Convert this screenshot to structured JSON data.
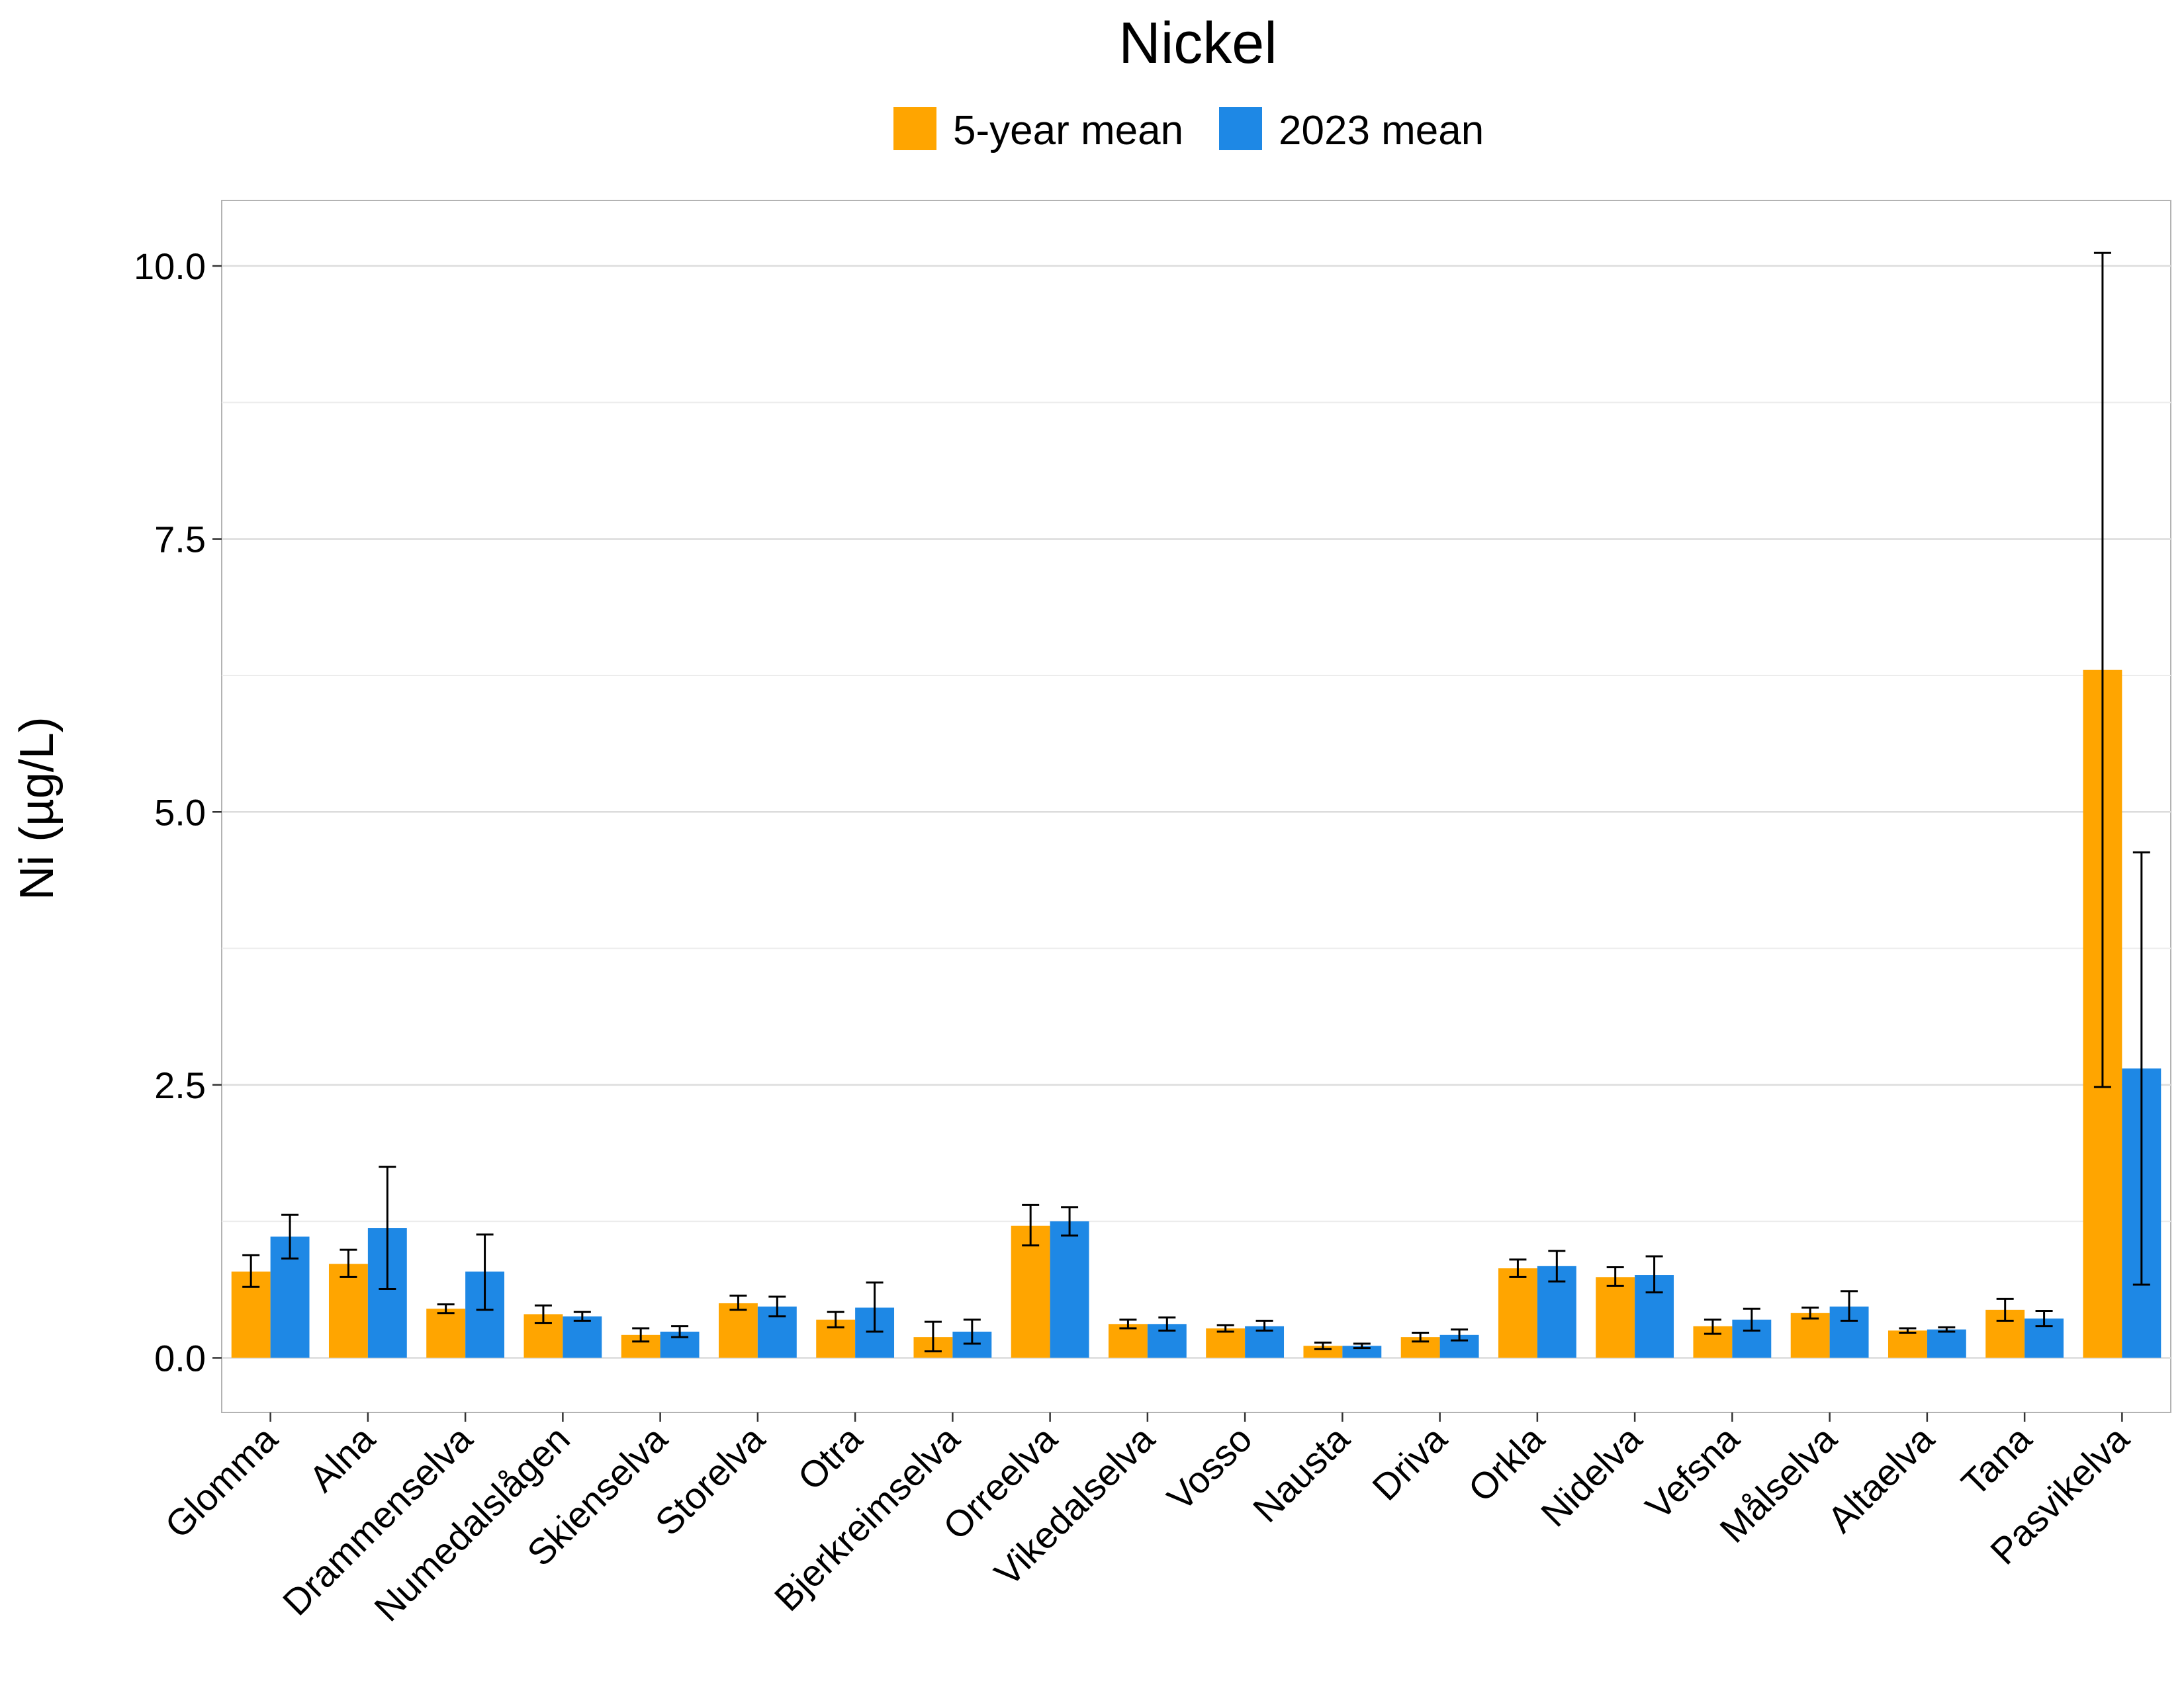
{
  "chart_data": {
    "type": "bar",
    "title": "Nickel",
    "xlabel": "",
    "ylabel": "Ni (µg/L)",
    "ylim": [
      -0.5,
      10.6
    ],
    "yticks": [
      "0.0",
      "2.5",
      "5.0",
      "7.5",
      "10.0"
    ],
    "ytick_values": [
      0,
      2.5,
      5,
      7.5,
      10
    ],
    "minor_gridlines": [
      1.25,
      3.75,
      6.25,
      8.75
    ],
    "grid": true,
    "legend_position": "top",
    "categories": [
      "Glomma",
      "Alna",
      "Drammenselva",
      "Numedalslågen",
      "Skienselva",
      "Storelva",
      "Otra",
      "Bjerkreimselva",
      "Orreelva",
      "Vikedalselva",
      "Vosso",
      "Nausta",
      "Driva",
      "Orkla",
      "Nidelva",
      "Vefsna",
      "Målselva",
      "Altaelva",
      "Tana",
      "Pasvikelva"
    ],
    "series": [
      {
        "name": "5-year mean",
        "color": "#FFA500",
        "values": [
          0.79,
          0.86,
          0.45,
          0.4,
          0.21,
          0.5,
          0.35,
          0.19,
          1.21,
          0.31,
          0.27,
          0.11,
          0.19,
          0.82,
          0.74,
          0.29,
          0.41,
          0.25,
          0.44,
          6.3
        ],
        "err_low": [
          0.65,
          0.74,
          0.41,
          0.32,
          0.15,
          0.44,
          0.28,
          0.06,
          1.03,
          0.27,
          0.24,
          0.08,
          0.15,
          0.74,
          0.66,
          0.22,
          0.36,
          0.23,
          0.34,
          2.48
        ],
        "err_high": [
          0.94,
          0.99,
          0.49,
          0.48,
          0.27,
          0.57,
          0.42,
          0.33,
          1.4,
          0.35,
          0.3,
          0.14,
          0.23,
          0.9,
          0.83,
          0.35,
          0.46,
          0.27,
          0.54,
          10.12
        ]
      },
      {
        "name": "2023 mean",
        "color": "#1E88E5",
        "values": [
          1.11,
          1.19,
          0.79,
          0.38,
          0.24,
          0.47,
          0.46,
          0.24,
          1.25,
          0.31,
          0.29,
          0.11,
          0.21,
          0.84,
          0.76,
          0.35,
          0.47,
          0.26,
          0.36,
          2.65
        ],
        "err_low": [
          0.91,
          0.63,
          0.44,
          0.34,
          0.19,
          0.38,
          0.24,
          0.13,
          1.12,
          0.25,
          0.25,
          0.09,
          0.16,
          0.7,
          0.6,
          0.25,
          0.34,
          0.24,
          0.29,
          0.67
        ],
        "err_high": [
          1.31,
          1.75,
          1.13,
          0.42,
          0.29,
          0.56,
          0.69,
          0.35,
          1.38,
          0.37,
          0.34,
          0.13,
          0.26,
          0.98,
          0.93,
          0.45,
          0.61,
          0.28,
          0.43,
          4.63
        ]
      }
    ]
  }
}
